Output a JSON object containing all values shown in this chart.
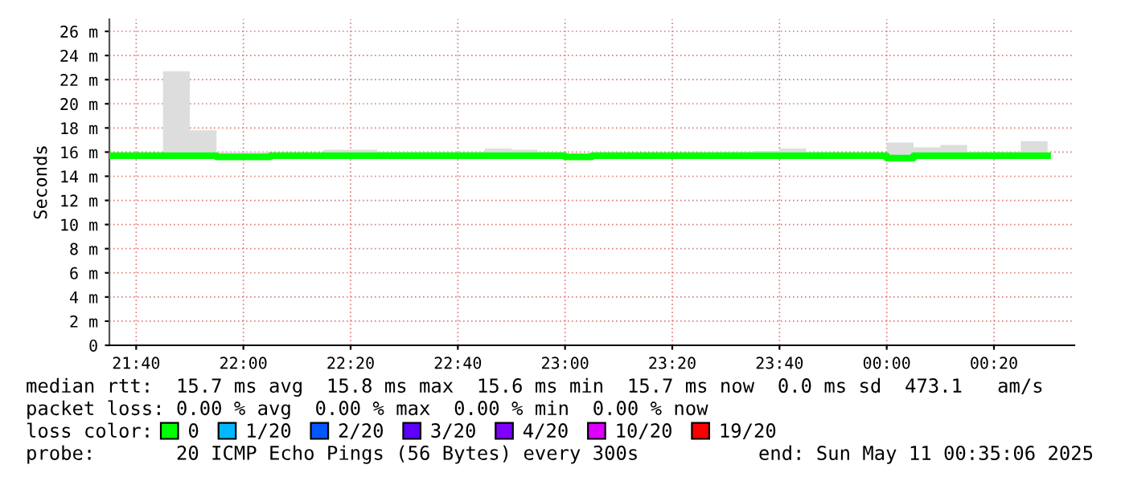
{
  "chart_data": {
    "type": "step",
    "ylabel": "Seconds",
    "x": [
      "2025-05-10T21:35",
      "2025-05-10T21:40",
      "2025-05-10T21:45",
      "2025-05-10T21:50",
      "2025-05-10T21:55",
      "2025-05-10T22:00",
      "2025-05-10T22:05",
      "2025-05-10T22:10",
      "2025-05-10T22:15",
      "2025-05-10T22:20",
      "2025-05-10T22:25",
      "2025-05-10T22:30",
      "2025-05-10T22:35",
      "2025-05-10T22:40",
      "2025-05-10T22:45",
      "2025-05-10T22:50",
      "2025-05-10T22:55",
      "2025-05-10T23:00",
      "2025-05-10T23:05",
      "2025-05-10T23:10",
      "2025-05-10T23:15",
      "2025-05-10T23:20",
      "2025-05-10T23:25",
      "2025-05-10T23:30",
      "2025-05-10T23:35",
      "2025-05-10T23:40",
      "2025-05-10T23:45",
      "2025-05-10T23:50",
      "2025-05-10T23:55",
      "2025-05-11T00:00",
      "2025-05-11T00:05",
      "2025-05-11T00:10",
      "2025-05-11T00:15",
      "2025-05-11T00:20",
      "2025-05-11T00:25",
      "2025-05-11T00:30"
    ],
    "series": [
      {
        "name": "0",
        "color": "#00ff00",
        "values": [
          15.7,
          15.7,
          15.7,
          15.7,
          15.6,
          15.6,
          15.7,
          15.7,
          15.7,
          15.7,
          15.7,
          15.7,
          15.7,
          15.7,
          15.7,
          15.7,
          15.7,
          15.6,
          15.7,
          15.7,
          15.7,
          15.7,
          15.7,
          15.7,
          15.7,
          15.7,
          15.7,
          15.7,
          15.7,
          15.5,
          15.7,
          15.7,
          15.7,
          15.7,
          15.7,
          15.7
        ],
        "lower": [
          15.6,
          15.6,
          15.6,
          15.6,
          15.6,
          15.6,
          15.6,
          15.6,
          15.6,
          15.6,
          15.6,
          15.6,
          15.6,
          15.6,
          15.6,
          15.6,
          15.6,
          15.6,
          15.6,
          15.6,
          15.6,
          15.6,
          15.6,
          15.6,
          15.6,
          15.6,
          15.6,
          15.6,
          15.6,
          15.6,
          15.6,
          15.6,
          15.6,
          15.6,
          15.6,
          15.6
        ],
        "upper": [
          15.9,
          15.9,
          22.7,
          17.8,
          16.0,
          16.0,
          15.9,
          15.9,
          16.2,
          16.2,
          16.0,
          16.0,
          16.0,
          16.0,
          16.3,
          16.2,
          16.0,
          15.9,
          16.0,
          15.9,
          15.9,
          15.9,
          16.0,
          16.0,
          16.1,
          16.3,
          16.0,
          15.9,
          15.9,
          16.8,
          16.4,
          16.6,
          16.0,
          16.0,
          16.9,
          16.9
        ]
      },
      {
        "name": "1/20",
        "color": "#00b8ff",
        "values": [
          null,
          null,
          null,
          null,
          null,
          null,
          null,
          null,
          null,
          null,
          null,
          null,
          null,
          null,
          null,
          null,
          null,
          null,
          null,
          null,
          null,
          null,
          null,
          null,
          null,
          null,
          null,
          null,
          null,
          null,
          null,
          null,
          null,
          null,
          null,
          null
        ]
      },
      {
        "name": "2/20",
        "color": "#0059ff",
        "values": [
          null,
          null,
          null,
          null,
          null,
          null,
          null,
          null,
          null,
          null,
          null,
          null,
          null,
          null,
          null,
          null,
          null,
          null,
          null,
          null,
          null,
          null,
          null,
          null,
          null,
          null,
          null,
          null,
          null,
          null,
          null,
          null,
          null,
          null,
          null,
          null
        ]
      },
      {
        "name": "3/20",
        "color": "#5e00ff",
        "values": [
          null,
          null,
          null,
          null,
          null,
          null,
          null,
          null,
          null,
          null,
          null,
          null,
          null,
          null,
          null,
          null,
          null,
          null,
          null,
          null,
          null,
          null,
          null,
          null,
          null,
          null,
          null,
          null,
          null,
          null,
          null,
          null,
          null,
          null,
          null,
          null
        ]
      },
      {
        "name": "4/20",
        "color": "#7e00ff",
        "values": [
          null,
          null,
          null,
          null,
          null,
          null,
          null,
          null,
          null,
          null,
          null,
          null,
          null,
          null,
          null,
          null,
          null,
          null,
          null,
          null,
          null,
          null,
          null,
          null,
          null,
          null,
          null,
          null,
          null,
          null,
          null,
          null,
          null,
          null,
          null,
          null
        ]
      },
      {
        "name": "10/20",
        "color": "#dd00ff",
        "values": [
          null,
          null,
          null,
          null,
          null,
          null,
          null,
          null,
          null,
          null,
          null,
          null,
          null,
          null,
          null,
          null,
          null,
          null,
          null,
          null,
          null,
          null,
          null,
          null,
          null,
          null,
          null,
          null,
          null,
          null,
          null,
          null,
          null,
          null,
          null,
          null
        ]
      },
      {
        "name": "19/20",
        "color": "#ff0000",
        "values": [
          null,
          null,
          null,
          null,
          null,
          null,
          null,
          null,
          null,
          null,
          null,
          null,
          null,
          null,
          null,
          null,
          null,
          null,
          null,
          null,
          null,
          null,
          null,
          null,
          null,
          null,
          null,
          null,
          null,
          null,
          null,
          null,
          null,
          null,
          null,
          null
        ]
      }
    ],
    "xlim": [
      "2025-05-10T21:35",
      "2025-05-11T00:35"
    ],
    "xticks": [
      {
        "value": "2025-05-10T21:40",
        "label": "21:40"
      },
      {
        "value": "2025-05-10T22:00",
        "label": "22:00"
      },
      {
        "value": "2025-05-10T22:20",
        "label": "22:20"
      },
      {
        "value": "2025-05-10T22:40",
        "label": "22:40"
      },
      {
        "value": "2025-05-10T23:00",
        "label": "23:00"
      },
      {
        "value": "2025-05-10T23:20",
        "label": "23:20"
      },
      {
        "value": "2025-05-10T23:40",
        "label": "23:40"
      },
      {
        "value": "2025-05-11T00:00",
        "label": "00:00"
      },
      {
        "value": "2025-05-11T00:20",
        "label": "00:20"
      }
    ],
    "ylim": [
      0,
      27
    ],
    "yticks": [
      0,
      {
        "value": 2,
        "label": "2 m"
      },
      {
        "value": 4,
        "label": "4 m"
      },
      {
        "value": 6,
        "label": "6 m"
      },
      {
        "value": 8,
        "label": "8 m"
      },
      {
        "value": 10,
        "label": "10 m"
      },
      {
        "value": 12,
        "label": "12 m"
      },
      {
        "value": 14,
        "label": "14 m"
      },
      {
        "value": 16,
        "label": "16 m"
      },
      {
        "value": 18,
        "label": "18 m"
      },
      {
        "value": 20,
        "label": "20 m"
      },
      {
        "value": 22,
        "label": "22 m"
      },
      {
        "value": 24,
        "label": "24 m"
      },
      {
        "value": 26,
        "label": "26 m"
      }
    ],
    "grid": true,
    "legend": "bottom",
    "legend_title": "loss color:",
    "annotations": [
      "median rtt:  15.7 ms avg  15.8 ms max  15.6 ms min  15.7 ms now  0.0 ms sd  473.1   am/s",
      "packet loss: 0.00 % avg  0.00 % max  0.00 % min  0.00 % now",
      "probe:       20 ICMP Echo Pings (56 Bytes) every 300s",
      "end: Sun May 11 00:35:06 2025"
    ]
  }
}
